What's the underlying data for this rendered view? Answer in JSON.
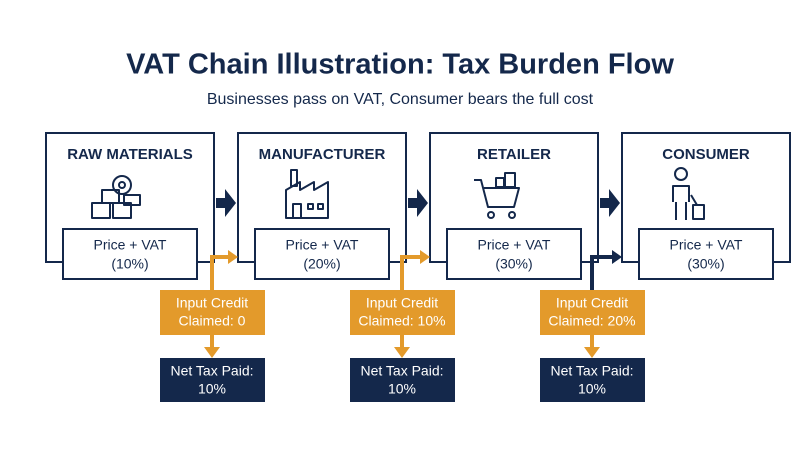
{
  "title": "VAT Chain Illustration: Tax Burden Flow",
  "subtitle": "Businesses pass on VAT, Consumer bears the full cost",
  "stages": [
    {
      "name": "RAW MATERIALS",
      "price": [
        "Price + VAT",
        "(10%)"
      ]
    },
    {
      "name": "MANUFACTURER",
      "price": [
        "Price + VAT",
        "(20%)"
      ]
    },
    {
      "name": "RETAILER",
      "price": [
        "Price + VAT",
        "(30%)"
      ]
    },
    {
      "name": "CONSUMER",
      "price": [
        "Price + VAT",
        "(30%)"
      ]
    }
  ],
  "credits": [
    [
      "Input Credit",
      "Claimed: 0"
    ],
    [
      "Input Credit",
      "Claimed: 10%"
    ],
    [
      "Input Credit",
      "Claimed: 20%"
    ]
  ],
  "net_tax": [
    [
      "Net Tax Paid:",
      "10%"
    ],
    [
      "Net Tax Paid:",
      "10%"
    ],
    [
      "Net Tax Paid:",
      "10%"
    ]
  ]
}
